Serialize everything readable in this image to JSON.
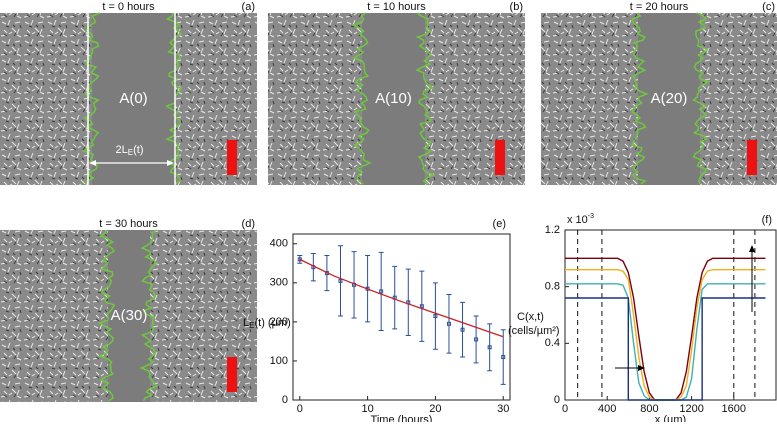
{
  "panels": [
    {
      "title": "t = 0 hours",
      "label": "(a)",
      "area": "A(0)",
      "width_label": [
        "2L",
        "E",
        "(t)"
      ]
    },
    {
      "title": "t = 10 hours",
      "label": "(b)",
      "area": "A(10)"
    },
    {
      "title": "t = 20 hours",
      "label": "(c)",
      "area": "A(20)"
    },
    {
      "title": "t = 30 hours",
      "label": "(d)",
      "area": "A(30)"
    }
  ],
  "chart_data": [
    {
      "type": "scatter",
      "label": "(e)",
      "xlabel": "Time (hours)",
      "ylabel": [
        "L",
        "E",
        "(t) (µm)"
      ],
      "xlim": [
        -1,
        31
      ],
      "ylim": [
        0,
        425
      ],
      "xticks": [
        0,
        10,
        20,
        30
      ],
      "yticks": [
        0,
        100,
        200,
        300,
        400
      ],
      "series": [
        {
          "kind": "errorbar",
          "color": "#2a4f9a",
          "x": [
            0,
            2,
            4,
            6,
            8,
            10,
            12,
            14,
            16,
            18,
            20,
            22,
            24,
            26,
            28,
            30
          ],
          "values": [
            360,
            340,
            325,
            305,
            295,
            285,
            278,
            262,
            250,
            240,
            215,
            195,
            180,
            155,
            135,
            110
          ],
          "errors": [
            10,
            35,
            45,
            90,
            85,
            85,
            100,
            80,
            85,
            90,
            85,
            75,
            70,
            60,
            60,
            70
          ]
        },
        {
          "kind": "line",
          "color": "#cc2222",
          "x": [
            0,
            5,
            10,
            15,
            20,
            25,
            30
          ],
          "values": [
            360,
            318,
            284,
            252,
            222,
            192,
            162
          ]
        }
      ]
    },
    {
      "type": "line",
      "label": "(f)",
      "xlabel": "x (µm)",
      "ylabel": [
        "C(x,t)",
        "(cells/µm²)"
      ],
      "scale_label": [
        "x 10",
        "-3"
      ],
      "xlim": [
        0,
        2000
      ],
      "ylim": [
        0,
        1.2
      ],
      "xticks": [
        0,
        400,
        800,
        1200,
        1600
      ],
      "yticks": [
        0,
        0.4,
        0.8,
        1.2
      ],
      "vlines": [
        120,
        350,
        1600,
        1800
      ],
      "series": [
        {
          "color": "#7a0010",
          "x": [
            0,
            400,
            500,
            550,
            600,
            650,
            700,
            750,
            800,
            850,
            1050,
            1100,
            1150,
            1200,
            1250,
            1300,
            1350,
            1400,
            1500,
            1900
          ],
          "values": [
            1.0,
            1.0,
            1.0,
            0.98,
            0.9,
            0.72,
            0.45,
            0.2,
            0.05,
            0.0,
            0.0,
            0.05,
            0.2,
            0.45,
            0.72,
            0.9,
            0.98,
            1.0,
            1.0,
            1.0
          ]
        },
        {
          "color": "#f0b020",
          "x": [
            0,
            400,
            500,
            550,
            600,
            650,
            700,
            750,
            800,
            850,
            1050,
            1100,
            1150,
            1200,
            1250,
            1300,
            1350,
            1400,
            1500,
            1900
          ],
          "values": [
            0.92,
            0.92,
            0.92,
            0.91,
            0.85,
            0.6,
            0.3,
            0.1,
            0.02,
            0.0,
            0.0,
            0.02,
            0.1,
            0.35,
            0.65,
            0.85,
            0.91,
            0.92,
            0.92,
            0.92
          ]
        },
        {
          "color": "#40b0b0",
          "x": [
            0,
            400,
            500,
            550,
            600,
            650,
            700,
            750,
            800,
            850,
            1050,
            1100,
            1150,
            1200,
            1250,
            1300,
            1350,
            1400,
            1500,
            1900
          ],
          "values": [
            0.82,
            0.82,
            0.82,
            0.81,
            0.72,
            0.4,
            0.12,
            0.03,
            0.0,
            0.0,
            0.0,
            0.0,
            0.02,
            0.15,
            0.5,
            0.78,
            0.82,
            0.82,
            0.82,
            0.82
          ]
        },
        {
          "color": "#1a2f80",
          "x": [
            0,
            600,
            600,
            1300,
            1300,
            1900
          ],
          "values": [
            0.72,
            0.72,
            0.0,
            0.0,
            0.72,
            0.72
          ]
        }
      ]
    }
  ]
}
